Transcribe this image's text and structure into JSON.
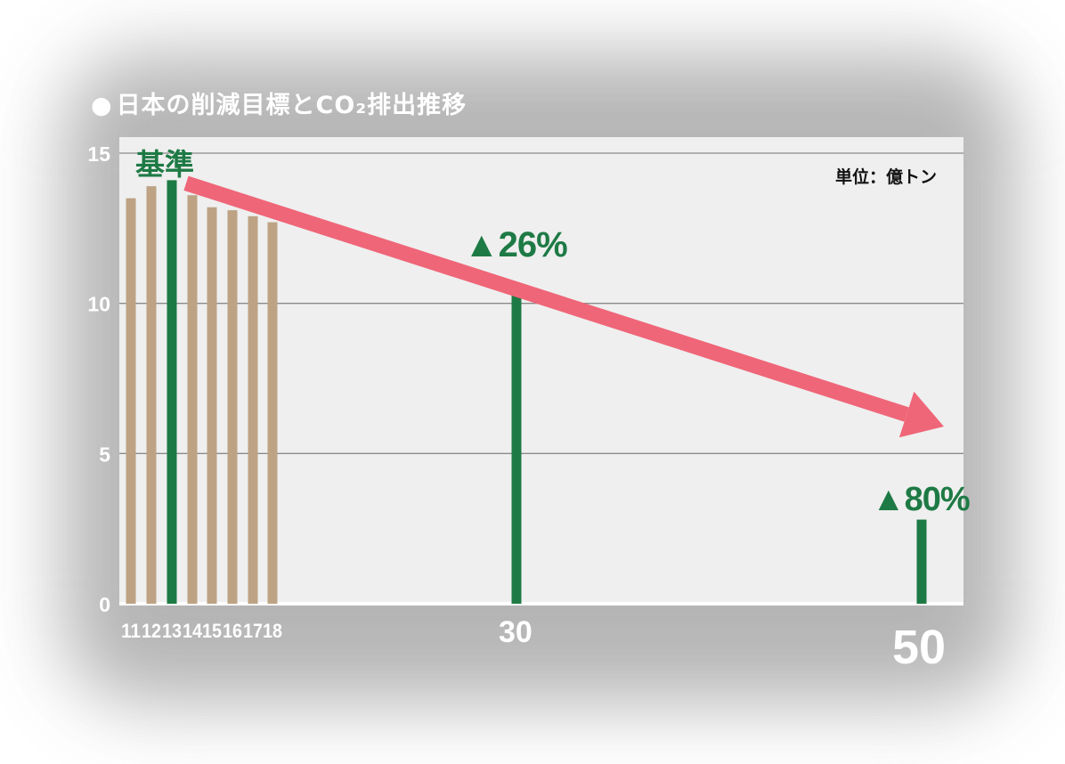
{
  "title": "日本の削減目標とCO₂排出推移",
  "title_bullet": "●",
  "unit_label": "単位：億トン",
  "base_label": "基準",
  "annotations": {
    "target_2030": "▲26%",
    "target_2050": "▲80%"
  },
  "colors": {
    "historical_bar": "#bda384",
    "highlight_bar": "#1e7a45",
    "trend_arrow": "#ef6678",
    "plot_background": "#efefef",
    "gridline": "#8a8a8a",
    "axis_text": "#ffffff"
  },
  "chart_data": {
    "type": "bar",
    "title": "日本の削減目標とCO₂排出推移",
    "unit": "単位：億トン",
    "ylim": [
      0,
      15
    ],
    "y_ticks": [
      "0",
      "5",
      "10",
      "15"
    ],
    "grid": true,
    "categories": [
      "11",
      "12",
      "13",
      "14",
      "15",
      "16",
      "17",
      "18",
      "30",
      "50"
    ],
    "values": [
      13.5,
      13.9,
      14.1,
      13.6,
      13.2,
      13.1,
      12.9,
      12.7,
      10.4,
      2.8
    ],
    "highlighted_categories": [
      "13",
      "30",
      "50"
    ],
    "trend_arrow": {
      "from": [
        "13",
        14.0
      ],
      "to": [
        "50",
        5.9
      ]
    }
  }
}
